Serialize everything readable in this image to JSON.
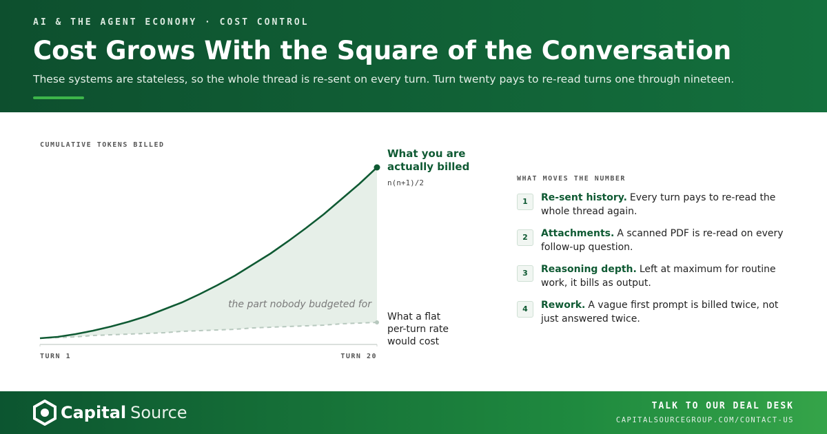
{
  "header": {
    "kicker": "AI & THE AGENT ECONOMY · COST CONTROL",
    "title": "Cost Grows With the Square of the Conversation",
    "subtitle": "These systems are stateless, so the whole thread is re-sent on every turn. Turn twenty pays to re-read turns one through nineteen."
  },
  "chart_data": {
    "type": "line",
    "y_label": "CUMULATIVE TOKENS BILLED",
    "x": [
      1,
      2,
      3,
      4,
      5,
      6,
      7,
      8,
      9,
      10,
      11,
      12,
      13,
      14,
      15,
      16,
      17,
      18,
      19,
      20
    ],
    "xlim": [
      1,
      20
    ],
    "xticks": [
      {
        "value": 1,
        "label": "TURN 1"
      },
      {
        "value": 20,
        "label": "TURN 20"
      }
    ],
    "ylim": [
      0,
      260
    ],
    "series": [
      {
        "name": "What you are actually billed",
        "color": "#0f5a33",
        "style": "solid",
        "formula": "n(n+1)/2",
        "values": [
          9,
          11,
          15,
          20,
          26,
          33,
          41,
          51,
          61,
          73,
          86,
          100,
          116,
          132,
          150,
          169,
          189,
          211,
          233,
          257
        ]
      },
      {
        "name": "What a flat per-turn rate would cost",
        "color": "#b7c8be",
        "style": "dashed",
        "values": [
          9,
          10,
          11,
          13,
          14,
          15,
          16,
          17,
          19,
          20,
          21,
          22,
          24,
          25,
          26,
          27,
          28,
          30,
          31,
          32
        ]
      }
    ],
    "area_color": "#e6efe8",
    "annotation": "the part nobody budgeted for"
  },
  "list": {
    "title": "WHAT MOVES THE NUMBER",
    "items": [
      {
        "num": 1,
        "lead": "Re-sent history.",
        "text": "Every turn pays to re-read the whole thread again."
      },
      {
        "num": 2,
        "lead": "Attachments.",
        "text": "A scanned PDF is re-read on every follow-up question."
      },
      {
        "num": 3,
        "lead": "Reasoning depth.",
        "text": "Left at maximum for routine work, it bills as output."
      },
      {
        "num": 4,
        "lead": "Rework.",
        "text": "A vague first prompt is billed twice, not just answered twice."
      }
    ]
  },
  "footer": {
    "brand_bold": "Capital",
    "brand_light": "Source",
    "cta": "TALK TO OUR DEAL DESK",
    "url": "CAPITALSOURCEGROUP.COM/CONTACT-US"
  }
}
